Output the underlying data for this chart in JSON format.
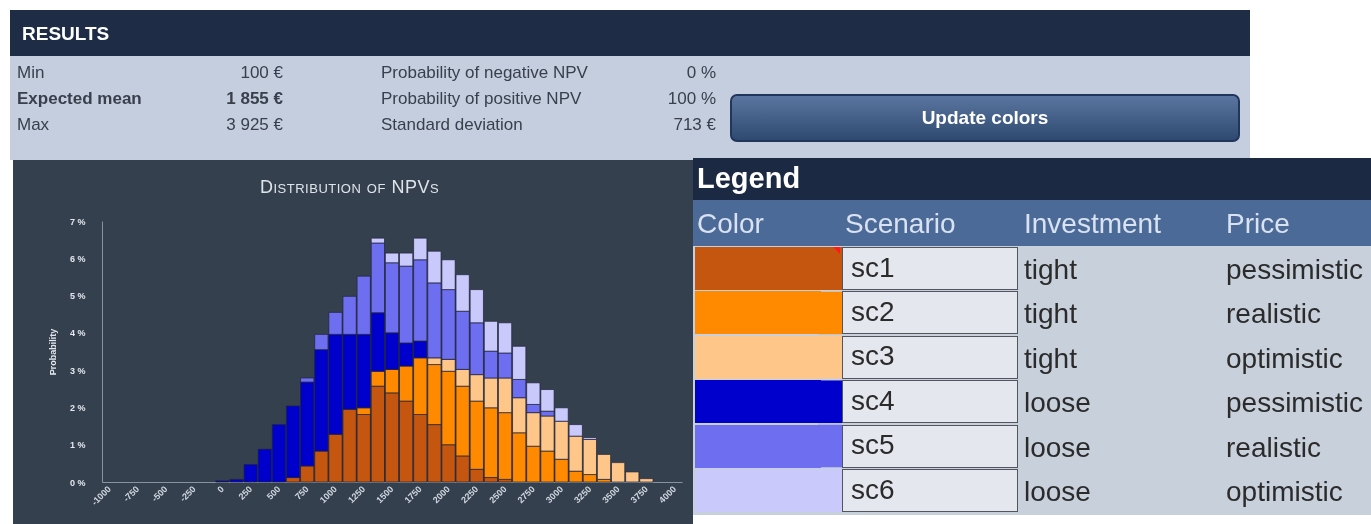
{
  "chart_data": [
    {
      "type": "other",
      "title": "RESULTS",
      "annotations": [
        "Min",
        "100 €",
        "Expected mean",
        "1 855 €",
        "Max",
        "3 925 €",
        "Probability of negative NPV",
        "0 %",
        "Probability of positive NPV",
        "100 %",
        "Standard deviation",
        "713 €",
        "Update colors"
      ]
    },
    {
      "type": "bar",
      "title": "Distribution of NPVs",
      "ylabel": "Probability",
      "stacked": true,
      "legend": "right",
      "legend_title": "Legend",
      "categories": [
        "-1000",
        null,
        "-750",
        null,
        "-500",
        null,
        "-250",
        null,
        "0",
        null,
        "250",
        null,
        "500",
        null,
        "750",
        null,
        "1000",
        null,
        "1250",
        null,
        "1500",
        null,
        "1750",
        null,
        "2000",
        null,
        "2250",
        null,
        "2500",
        null,
        "2750",
        null,
        "3000",
        null,
        "3250",
        null,
        "3500",
        null,
        "3750",
        null,
        "4000"
      ],
      "ylim": [
        0,
        7
      ],
      "yticks": [
        {
          "value": 0,
          "label": "0 %"
        },
        {
          "value": 1,
          "label": "1 %"
        },
        {
          "value": 2,
          "label": "2 %"
        },
        {
          "value": 3,
          "label": "3 %"
        },
        {
          "value": 4,
          "label": "4 %"
        },
        {
          "value": 5,
          "label": "5 %"
        },
        {
          "value": 6,
          "label": "6 %"
        },
        {
          "value": 7,
          "label": "7 %"
        }
      ],
      "series": [
        {
          "name": "sc1",
          "color": "#c5560f",
          "values": [
            null,
            null,
            null,
            null,
            null,
            null,
            null,
            null,
            null,
            null,
            null,
            null,
            null,
            0.12,
            0.43,
            0.83,
            1.28,
            1.95,
            1.81,
            2.57,
            2.39,
            2.17,
            1.81,
            1.54,
            1.0,
            0.7,
            0.34,
            0.12,
            0.07,
            null,
            null,
            null,
            null,
            null,
            null,
            null,
            null,
            null,
            null,
            null,
            null
          ]
        },
        {
          "name": "sc2",
          "color": "#ff8a00",
          "values": [
            null,
            null,
            null,
            null,
            null,
            null,
            null,
            null,
            null,
            null,
            null,
            null,
            null,
            null,
            null,
            null,
            null,
            null,
            0.18,
            0.4,
            0.63,
            0.94,
            1.52,
            1.61,
            1.97,
            1.87,
            1.83,
            1.87,
            1.79,
            1.32,
            0.96,
            0.83,
            0.61,
            0.29,
            0.2,
            0.07,
            null,
            null,
            null,
            null,
            null
          ]
        },
        {
          "name": "sc3",
          "color": "#ffc68a",
          "values": [
            null,
            null,
            null,
            null,
            null,
            null,
            null,
            null,
            null,
            null,
            null,
            null,
            null,
            null,
            null,
            null,
            null,
            null,
            null,
            null,
            null,
            null,
            null,
            0.18,
            0.32,
            0.45,
            0.71,
            0.8,
            0.93,
            0.94,
            0.9,
            0.94,
            1.02,
            0.94,
            0.94,
            0.67,
            0.52,
            0.27,
            0.09,
            null,
            null
          ]
        },
        {
          "name": "sc4",
          "color": "#0000cc",
          "values": [
            null,
            null,
            null,
            null,
            null,
            null,
            null,
            null,
            0.03,
            0.07,
            0.47,
            0.88,
            1.54,
            1.92,
            2.25,
            2.72,
            2.68,
            2.01,
            1.97,
            1.57,
            0.98,
            0.62,
            0.45,
            null,
            null,
            null,
            null,
            null,
            null,
            null,
            null,
            null,
            null,
            null,
            null,
            null,
            null,
            null,
            null,
            null,
            null
          ]
        },
        {
          "name": "sc5",
          "color": "#6e6ef0",
          "values": [
            null,
            null,
            null,
            null,
            null,
            null,
            null,
            null,
            null,
            null,
            null,
            null,
            null,
            null,
            0.11,
            0.41,
            0.59,
            1.02,
            1.56,
            1.87,
            1.88,
            2.06,
            2.18,
            2.01,
            1.87,
            1.56,
            1.39,
            0.72,
            0.67,
            0.49,
            0.22,
            0.13,
            null,
            null,
            null,
            null,
            null,
            null,
            null,
            null,
            null
          ]
        },
        {
          "name": "sc6",
          "color": "#c9c9fc",
          "values": [
            null,
            null,
            null,
            null,
            null,
            null,
            null,
            null,
            null,
            null,
            null,
            null,
            null,
            null,
            null,
            null,
            null,
            null,
            null,
            0.13,
            0.26,
            0.35,
            0.58,
            0.85,
            0.8,
            0.98,
            0.89,
            0.8,
            0.81,
            0.89,
            0.58,
            0.58,
            0.36,
            0.31,
            0.05,
            null,
            null,
            null,
            null,
            null,
            null
          ]
        }
      ],
      "annotations": [
        "Color",
        "Scenario",
        "Investment",
        "Price",
        "tight",
        "pessimistic",
        "tight",
        "realistic",
        "tight",
        "optimistic",
        "loose",
        "pessimistic",
        "loose",
        "realistic",
        "loose",
        "optimistic"
      ]
    }
  ]
}
